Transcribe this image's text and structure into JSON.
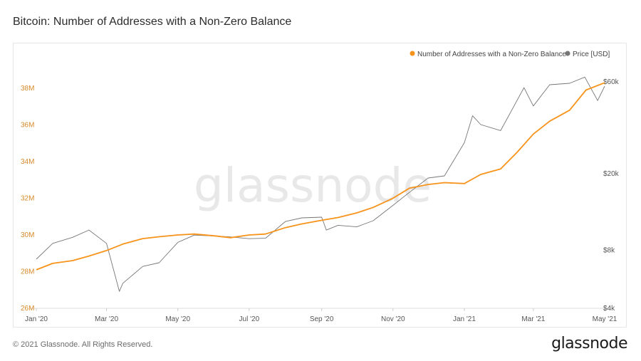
{
  "page": {
    "title": "Bitcoin: Number of Addresses with a Non-Zero Balance",
    "copyright": "© 2021 Glassnode. All Rights Reserved.",
    "brand": "glassnode",
    "watermark": "glassnode"
  },
  "colors": {
    "addresses": "#f7931a",
    "price": "#767676",
    "left_axis_text": "#d68a2a",
    "axis_text": "#555555",
    "watermark": "#e8e8e8"
  },
  "chart_data": {
    "type": "line",
    "title": "Bitcoin: Number of Addresses with a Non-Zero Balance",
    "x_ticks": [
      "Jan '20",
      "Mar '20",
      "May '20",
      "Jul '20",
      "Sep '20",
      "Nov '20",
      "Jan '21",
      "Mar '21",
      "May '21"
    ],
    "x_tick_dates": [
      "2020-01-01",
      "2020-03-01",
      "2020-05-01",
      "2020-07-01",
      "2020-09-01",
      "2020-11-01",
      "2021-01-01",
      "2021-03-01",
      "2021-05-01"
    ],
    "x_range": [
      "2020-01-01",
      "2021-05-01"
    ],
    "left_axis": {
      "ticks": [
        "26M",
        "28M",
        "30M",
        "32M",
        "34M",
        "36M",
        "38M"
      ],
      "range": [
        26000000,
        38500000
      ]
    },
    "right_axis": {
      "scale": "log",
      "ticks": [
        "$4k",
        "$8k",
        "$20k",
        "$60k"
      ],
      "range": [
        4000,
        60000
      ]
    },
    "legend": {
      "position": "top-right"
    },
    "grid": false,
    "series": [
      {
        "name": "Number of Addresses with a Non-Zero Balance",
        "axis": "left",
        "points": [
          [
            "2020-01-01",
            28.1
          ],
          [
            "2020-01-15",
            28.45
          ],
          [
            "2020-02-01",
            28.6
          ],
          [
            "2020-02-15",
            28.85
          ],
          [
            "2020-03-01",
            29.15
          ],
          [
            "2020-03-15",
            29.5
          ],
          [
            "2020-04-01",
            29.8
          ],
          [
            "2020-04-15",
            29.9
          ],
          [
            "2020-05-01",
            30.0
          ],
          [
            "2020-05-15",
            30.05
          ],
          [
            "2020-06-01",
            29.95
          ],
          [
            "2020-06-15",
            29.85
          ],
          [
            "2020-07-01",
            30.0
          ],
          [
            "2020-07-15",
            30.05
          ],
          [
            "2020-08-01",
            30.4
          ],
          [
            "2020-08-15",
            30.6
          ],
          [
            "2020-09-01",
            30.8
          ],
          [
            "2020-09-15",
            30.95
          ],
          [
            "2020-10-01",
            31.2
          ],
          [
            "2020-10-15",
            31.5
          ],
          [
            "2020-11-01",
            32.0
          ],
          [
            "2020-11-15",
            32.55
          ],
          [
            "2020-12-01",
            32.75
          ],
          [
            "2020-12-15",
            32.85
          ],
          [
            "2021-01-01",
            32.8
          ],
          [
            "2021-01-15",
            33.3
          ],
          [
            "2021-02-01",
            33.6
          ],
          [
            "2021-02-15",
            34.5
          ],
          [
            "2021-03-01",
            35.5
          ],
          [
            "2021-03-15",
            36.2
          ],
          [
            "2021-04-01",
            36.8
          ],
          [
            "2021-04-15",
            37.9
          ],
          [
            "2021-05-01",
            38.3
          ]
        ]
      },
      {
        "name": "Price [USD]",
        "axis": "right",
        "points": [
          [
            "2020-01-01",
            7200
          ],
          [
            "2020-01-15",
            8700
          ],
          [
            "2020-02-01",
            9350
          ],
          [
            "2020-02-15",
            10200
          ],
          [
            "2020-03-01",
            8700
          ],
          [
            "2020-03-12",
            4900
          ],
          [
            "2020-03-15",
            5400
          ],
          [
            "2020-04-01",
            6600
          ],
          [
            "2020-04-15",
            6900
          ],
          [
            "2020-05-01",
            8800
          ],
          [
            "2020-05-15",
            9600
          ],
          [
            "2020-06-01",
            9500
          ],
          [
            "2020-06-15",
            9400
          ],
          [
            "2020-07-01",
            9200
          ],
          [
            "2020-07-15",
            9250
          ],
          [
            "2020-08-01",
            11300
          ],
          [
            "2020-08-15",
            11800
          ],
          [
            "2020-09-01",
            11900
          ],
          [
            "2020-09-05",
            10200
          ],
          [
            "2020-09-15",
            10800
          ],
          [
            "2020-10-01",
            10600
          ],
          [
            "2020-10-15",
            11400
          ],
          [
            "2020-11-01",
            13700
          ],
          [
            "2020-11-15",
            16000
          ],
          [
            "2020-12-01",
            19000
          ],
          [
            "2020-12-15",
            19500
          ],
          [
            "2021-01-01",
            29000
          ],
          [
            "2021-01-08",
            40000
          ],
          [
            "2021-01-15",
            36000
          ],
          [
            "2021-02-01",
            33500
          ],
          [
            "2021-02-15",
            48000
          ],
          [
            "2021-02-21",
            56000
          ],
          [
            "2021-03-01",
            45000
          ],
          [
            "2021-03-15",
            58000
          ],
          [
            "2021-04-01",
            59000
          ],
          [
            "2021-04-14",
            63500
          ],
          [
            "2021-04-25",
            48000
          ],
          [
            "2021-05-01",
            57000
          ]
        ]
      }
    ]
  }
}
